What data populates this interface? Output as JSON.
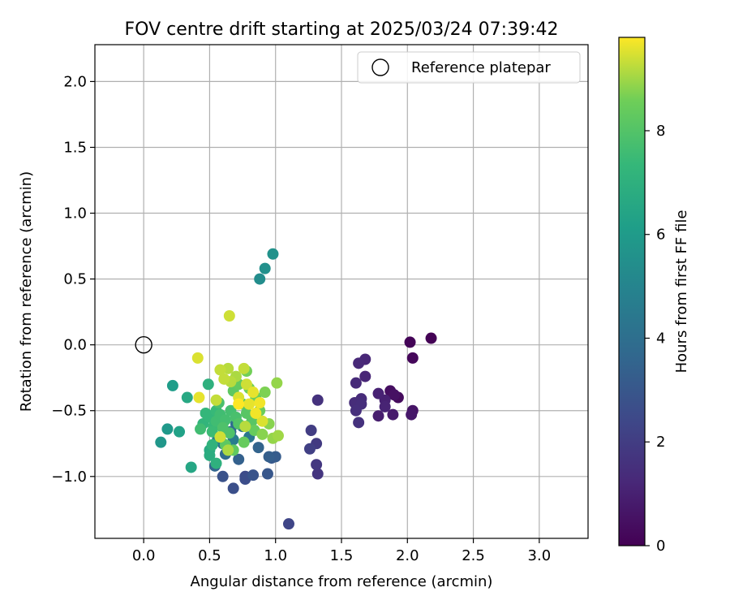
{
  "chart_data": {
    "type": "scatter",
    "title": "FOV centre drift starting at 2025/03/24 07:39:42",
    "xlabel": "Angular distance from reference (arcmin)",
    "ylabel": "Rotation from reference (arcmin)",
    "xlim": [
      -0.37,
      3.37
    ],
    "ylim": [
      -1.47,
      2.28
    ],
    "xticks": [
      0.0,
      0.5,
      1.0,
      1.5,
      2.0,
      2.5,
      3.0
    ],
    "xtick_labels": [
      "0.0",
      "0.5",
      "1.0",
      "1.5",
      "2.0",
      "2.5",
      "3.0"
    ],
    "yticks": [
      -1.0,
      -0.5,
      0.0,
      0.5,
      1.0,
      1.5,
      2.0
    ],
    "ytick_labels": [
      "−1.0",
      "−0.5",
      "0.0",
      "0.5",
      "1.0",
      "1.5",
      "2.0"
    ],
    "grid": true,
    "legend": {
      "placement": "upper right",
      "entries": [
        "Reference platepar"
      ]
    },
    "reference_point": {
      "x": 0.0,
      "y": 0.0,
      "label": "Reference platepar"
    },
    "colorbar": {
      "label": "Hours from first FF file",
      "colormap": "viridis",
      "range": [
        0,
        9.8
      ],
      "ticks": [
        0,
        2,
        4,
        6,
        8
      ],
      "tick_labels": [
        "0",
        "2",
        "4",
        "6",
        "8"
      ]
    },
    "series": [
      {
        "points": [
          {
            "x": 2.18,
            "y": 0.05,
            "c": 0.05
          },
          {
            "x": 2.02,
            "y": 0.02,
            "c": 0.1
          },
          {
            "x": 2.04,
            "y": -0.1,
            "c": 0.2
          },
          {
            "x": 1.93,
            "y": -0.4,
            "c": 0.3
          },
          {
            "x": 1.87,
            "y": -0.35,
            "c": 0.4
          },
          {
            "x": 1.9,
            "y": -0.38,
            "c": 0.5
          },
          {
            "x": 2.04,
            "y": -0.5,
            "c": 0.6
          },
          {
            "x": 2.03,
            "y": -0.53,
            "c": 0.7
          },
          {
            "x": 1.89,
            "y": -0.53,
            "c": 0.8
          },
          {
            "x": 1.78,
            "y": -0.54,
            "c": 0.9
          },
          {
            "x": 1.83,
            "y": -0.42,
            "c": 1.0
          },
          {
            "x": 1.78,
            "y": -0.37,
            "c": 1.05
          },
          {
            "x": 1.83,
            "y": -0.47,
            "c": 1.1
          },
          {
            "x": 1.68,
            "y": -0.24,
            "c": 1.15
          },
          {
            "x": 1.68,
            "y": -0.11,
            "c": 1.2
          },
          {
            "x": 1.63,
            "y": -0.14,
            "c": 1.25
          },
          {
            "x": 1.61,
            "y": -0.29,
            "c": 1.3
          },
          {
            "x": 1.65,
            "y": -0.41,
            "c": 1.35
          },
          {
            "x": 1.6,
            "y": -0.44,
            "c": 1.4
          },
          {
            "x": 1.65,
            "y": -0.45,
            "c": 1.45
          },
          {
            "x": 1.61,
            "y": -0.5,
            "c": 1.5
          },
          {
            "x": 1.63,
            "y": -0.59,
            "c": 1.55
          },
          {
            "x": 1.32,
            "y": -0.42,
            "c": 1.6
          },
          {
            "x": 1.32,
            "y": -0.98,
            "c": 1.7
          },
          {
            "x": 1.31,
            "y": -0.91,
            "c": 1.8
          },
          {
            "x": 1.31,
            "y": -0.75,
            "c": 1.9
          },
          {
            "x": 1.27,
            "y": -0.65,
            "c": 2.0
          },
          {
            "x": 1.26,
            "y": -0.79,
            "c": 2.1
          },
          {
            "x": 1.1,
            "y": -1.36,
            "c": 2.3
          },
          {
            "x": 0.77,
            "y": -1.0,
            "c": 2.5
          },
          {
            "x": 0.77,
            "y": -1.02,
            "c": 2.6
          },
          {
            "x": 0.68,
            "y": -1.09,
            "c": 2.7
          },
          {
            "x": 0.6,
            "y": -1.0,
            "c": 2.8
          },
          {
            "x": 0.83,
            "y": -0.99,
            "c": 2.9
          },
          {
            "x": 0.94,
            "y": -0.98,
            "c": 3.0
          },
          {
            "x": 0.97,
            "y": -0.86,
            "c": 3.1
          },
          {
            "x": 1.0,
            "y": -0.85,
            "c": 3.2
          },
          {
            "x": 0.95,
            "y": -0.85,
            "c": 3.3
          },
          {
            "x": 0.72,
            "y": -0.87,
            "c": 3.4
          },
          {
            "x": 0.87,
            "y": -0.78,
            "c": 3.5
          },
          {
            "x": 0.54,
            "y": -0.92,
            "c": 3.6
          },
          {
            "x": 0.66,
            "y": -0.66,
            "c": 3.7
          },
          {
            "x": 0.62,
            "y": -0.83,
            "c": 3.8
          },
          {
            "x": 0.7,
            "y": -0.6,
            "c": 3.9
          },
          {
            "x": 0.6,
            "y": -0.75,
            "c": 4.0
          },
          {
            "x": 0.75,
            "y": -0.62,
            "c": 4.2
          },
          {
            "x": 0.8,
            "y": -0.7,
            "c": 4.4
          },
          {
            "x": 0.68,
            "y": -0.72,
            "c": 4.6
          },
          {
            "x": 0.56,
            "y": -0.72,
            "c": 4.8
          },
          {
            "x": 0.88,
            "y": 0.5,
            "c": 5.4
          },
          {
            "x": 0.92,
            "y": 0.58,
            "c": 5.5
          },
          {
            "x": 0.98,
            "y": 0.69,
            "c": 5.6
          },
          {
            "x": 0.13,
            "y": -0.74,
            "c": 5.8
          },
          {
            "x": 0.18,
            "y": -0.64,
            "c": 5.9
          },
          {
            "x": 0.22,
            "y": -0.31,
            "c": 6.1
          },
          {
            "x": 0.27,
            "y": -0.66,
            "c": 6.3
          },
          {
            "x": 0.36,
            "y": -0.93,
            "c": 6.5
          },
          {
            "x": 0.33,
            "y": -0.4,
            "c": 6.6
          },
          {
            "x": 0.5,
            "y": -0.8,
            "c": 6.7
          },
          {
            "x": 0.5,
            "y": -0.84,
            "c": 6.8
          },
          {
            "x": 0.55,
            "y": -0.9,
            "c": 7.0
          },
          {
            "x": 0.49,
            "y": -0.3,
            "c": 7.0
          },
          {
            "x": 0.52,
            "y": -0.76,
            "c": 7.1
          },
          {
            "x": 0.45,
            "y": -0.6,
            "c": 7.2
          },
          {
            "x": 0.5,
            "y": -0.55,
            "c": 7.3
          },
          {
            "x": 0.55,
            "y": -0.5,
            "c": 7.4
          },
          {
            "x": 0.6,
            "y": -0.6,
            "c": 7.5
          },
          {
            "x": 0.52,
            "y": -0.66,
            "c": 7.5
          },
          {
            "x": 0.55,
            "y": -0.58,
            "c": 7.6
          },
          {
            "x": 0.58,
            "y": -0.53,
            "c": 7.6
          },
          {
            "x": 0.62,
            "y": -0.57,
            "c": 7.7
          },
          {
            "x": 0.66,
            "y": -0.5,
            "c": 7.7
          },
          {
            "x": 0.7,
            "y": -0.55,
            "c": 7.8
          },
          {
            "x": 0.57,
            "y": -0.44,
            "c": 7.8
          },
          {
            "x": 0.6,
            "y": -0.63,
            "c": 7.9
          },
          {
            "x": 0.65,
            "y": -0.67,
            "c": 7.9
          },
          {
            "x": 0.72,
            "y": -0.6,
            "c": 8.0
          },
          {
            "x": 0.75,
            "y": -0.45,
            "c": 8.0
          },
          {
            "x": 0.78,
            "y": -0.52,
            "c": 8.1
          },
          {
            "x": 0.82,
            "y": -0.58,
            "c": 8.1
          },
          {
            "x": 0.53,
            "y": -0.62,
            "c": 7.4
          },
          {
            "x": 0.47,
            "y": -0.52,
            "c": 7.3
          },
          {
            "x": 0.43,
            "y": -0.64,
            "c": 7.6
          },
          {
            "x": 0.68,
            "y": -0.35,
            "c": 8.2
          },
          {
            "x": 0.72,
            "y": -0.3,
            "c": 8.3
          },
          {
            "x": 0.62,
            "y": -0.76,
            "c": 8.2
          },
          {
            "x": 0.68,
            "y": -0.8,
            "c": 8.3
          },
          {
            "x": 0.76,
            "y": -0.74,
            "c": 8.4
          },
          {
            "x": 0.84,
            "y": -0.65,
            "c": 8.4
          },
          {
            "x": 0.88,
            "y": -0.5,
            "c": 8.5
          },
          {
            "x": 0.85,
            "y": -0.4,
            "c": 8.5
          },
          {
            "x": 0.8,
            "y": -0.33,
            "c": 8.6
          },
          {
            "x": 0.78,
            "y": -0.2,
            "c": 8.6
          },
          {
            "x": 0.92,
            "y": -0.36,
            "c": 8.7
          },
          {
            "x": 0.95,
            "y": -0.6,
            "c": 8.8
          },
          {
            "x": 0.9,
            "y": -0.68,
            "c": 8.8
          },
          {
            "x": 1.01,
            "y": -0.29,
            "c": 8.9
          },
          {
            "x": 0.98,
            "y": -0.71,
            "c": 8.9
          },
          {
            "x": 1.02,
            "y": -0.69,
            "c": 9.0
          },
          {
            "x": 0.42,
            "y": -0.4,
            "c": 9.6
          },
          {
            "x": 0.41,
            "y": -0.1,
            "c": 9.5
          },
          {
            "x": 0.65,
            "y": 0.22,
            "c": 9.4
          },
          {
            "x": 0.58,
            "y": -0.19,
            "c": 9.3
          },
          {
            "x": 0.61,
            "y": -0.26,
            "c": 9.3
          },
          {
            "x": 0.64,
            "y": -0.18,
            "c": 9.2
          },
          {
            "x": 0.66,
            "y": -0.28,
            "c": 9.2
          },
          {
            "x": 0.7,
            "y": -0.24,
            "c": 9.1
          },
          {
            "x": 0.76,
            "y": -0.18,
            "c": 9.3
          },
          {
            "x": 0.78,
            "y": -0.3,
            "c": 9.4
          },
          {
            "x": 0.72,
            "y": -0.4,
            "c": 9.5
          },
          {
            "x": 0.8,
            "y": -0.45,
            "c": 9.6
          },
          {
            "x": 0.85,
            "y": -0.52,
            "c": 9.7
          },
          {
            "x": 0.83,
            "y": -0.36,
            "c": 9.6
          },
          {
            "x": 0.9,
            "y": -0.58,
            "c": 9.5
          },
          {
            "x": 0.58,
            "y": -0.7,
            "c": 9.4
          },
          {
            "x": 0.55,
            "y": -0.42,
            "c": 9.3
          },
          {
            "x": 0.77,
            "y": -0.62,
            "c": 9.2
          },
          {
            "x": 0.64,
            "y": -0.8,
            "c": 9.1
          },
          {
            "x": 0.72,
            "y": -0.45,
            "c": 9.8
          },
          {
            "x": 0.88,
            "y": -0.44,
            "c": 9.7
          }
        ]
      }
    ]
  }
}
